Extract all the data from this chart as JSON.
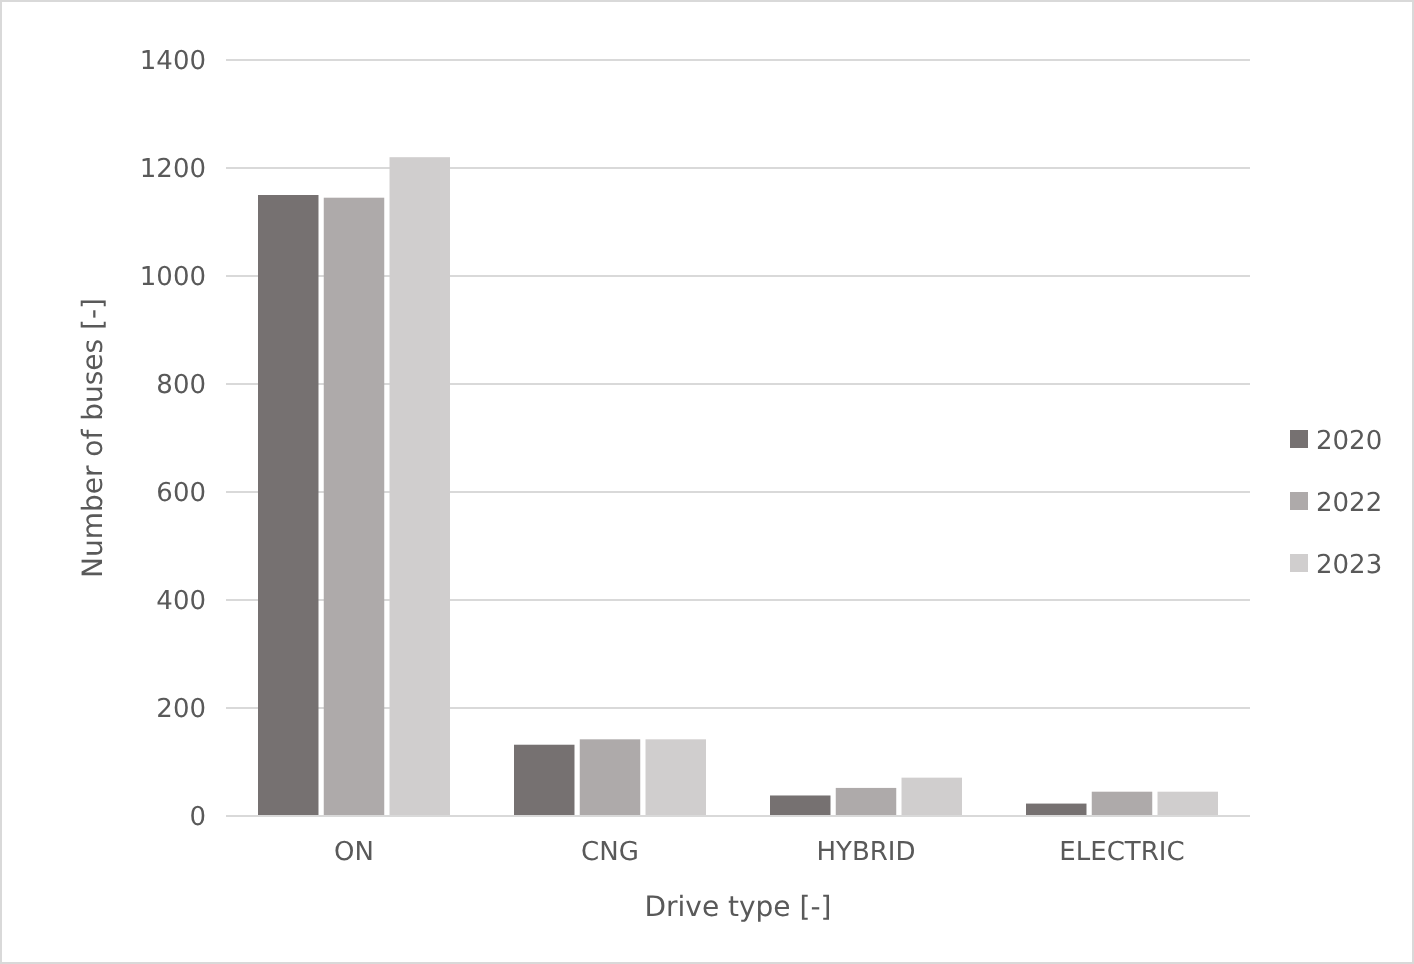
{
  "chart_data": {
    "type": "bar",
    "xlabel": "Drive type [-]",
    "ylabel": "Number of buses [-]",
    "categories": [
      "ON",
      "CNG",
      "HYBRID",
      "ELECTRIC"
    ],
    "series": [
      {
        "name": "2020",
        "color": "#767171",
        "values": [
          1150,
          132,
          38,
          23
        ]
      },
      {
        "name": "2022",
        "color": "#aeaaaa",
        "values": [
          1145,
          142,
          52,
          45
        ]
      },
      {
        "name": "2023",
        "color": "#d0cece",
        "values": [
          1220,
          142,
          71,
          45
        ]
      }
    ],
    "ylim": [
      0,
      1400
    ],
    "yticks": [
      0,
      200,
      400,
      600,
      800,
      1000,
      1200,
      1400
    ],
    "grid": "y",
    "legend": "right"
  }
}
